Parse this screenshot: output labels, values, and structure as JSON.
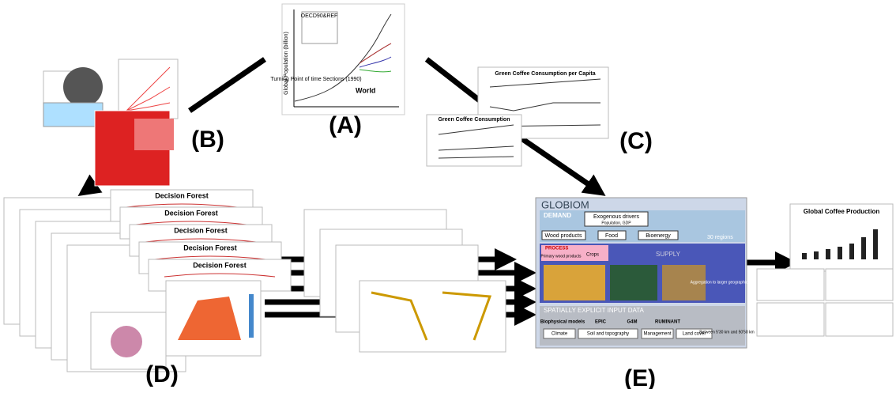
{
  "panel_labels": [
    "(A)",
    "(B)",
    "(C)",
    "(D)",
    "(E)"
  ],
  "panel_a": {
    "subtitle": "World",
    "inset": "OECD90&REF",
    "y_label": "Global Population (billion)",
    "note": "Turning Point of time Sections (1990)"
  },
  "panel_c": {
    "title_top": "Green Coffee Consumption per Capita",
    "title_bottom": "Green Coffee Consumption"
  },
  "panel_d": {
    "cards": [
      "Decision Forest",
      "Decision Forest",
      "Decision Forest",
      "Decision Forest",
      "Decision Forest"
    ]
  },
  "globiom": {
    "title": "GLOBIOM",
    "demand": "DEMAND",
    "drivers": "Exogenous drivers",
    "drivers_sub": "Population, GDP",
    "products": [
      "Wood products",
      "Food",
      "Bioenergy"
    ],
    "regions": "30 regions",
    "process": "PROCESS",
    "process_items": [
      "Primary wood products",
      "Crops"
    ],
    "supply": "SUPPLY",
    "aggregation": "Aggregation to larger geographical units",
    "input": "SPATIALLY EXPLICIT INPUT DATA",
    "models": [
      "Biophysical models",
      "EPIC",
      "G4M",
      "RUMINANT"
    ],
    "inputs": [
      "Climate",
      "Soil and topography",
      "Management",
      "Land cover"
    ],
    "resolution": "Between 5'30 km and 50'50 km"
  },
  "panel_e": {
    "title": "Global Coffee Production"
  }
}
